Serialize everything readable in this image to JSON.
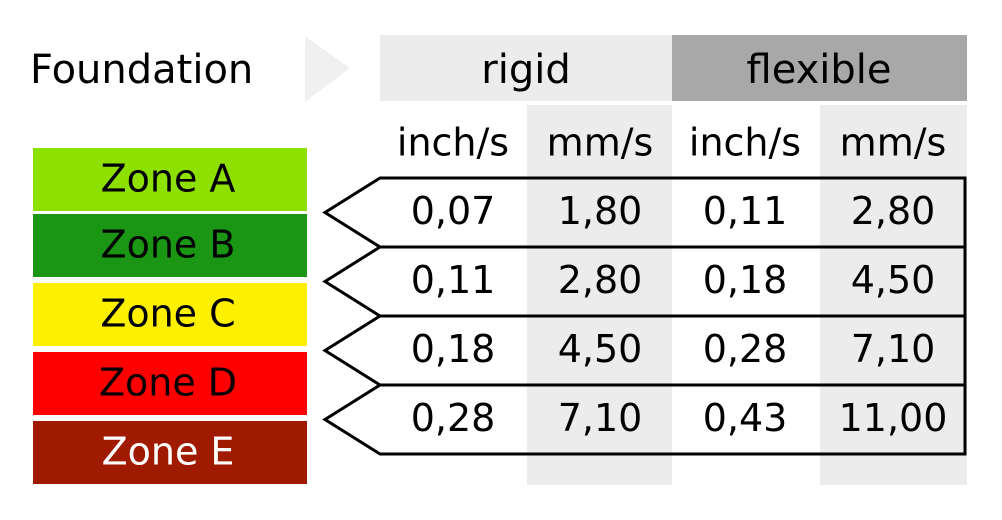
{
  "title": "Foundation",
  "groups": [
    "rigid",
    "flexible"
  ],
  "units": [
    "inch/s",
    "mm/s",
    "inch/s",
    "mm/s"
  ],
  "zones": [
    {
      "label": "Zone A",
      "color": "#8ee000"
    },
    {
      "label": "Zone B",
      "color": "#1a9614"
    },
    {
      "label": "Zone C",
      "color": "#fff000"
    },
    {
      "label": "Zone D",
      "color": "#ff0000"
    },
    {
      "label": "Zone E",
      "color": "#a01a00"
    }
  ],
  "rows": [
    [
      "0,07",
      "1,80",
      "0,11",
      "2,80"
    ],
    [
      "0,11",
      "2,80",
      "0,18",
      "4,50"
    ],
    [
      "0,18",
      "4,50",
      "0,28",
      "7,10"
    ],
    [
      "0,28",
      "7,10",
      "0,43",
      "11,00"
    ]
  ]
}
